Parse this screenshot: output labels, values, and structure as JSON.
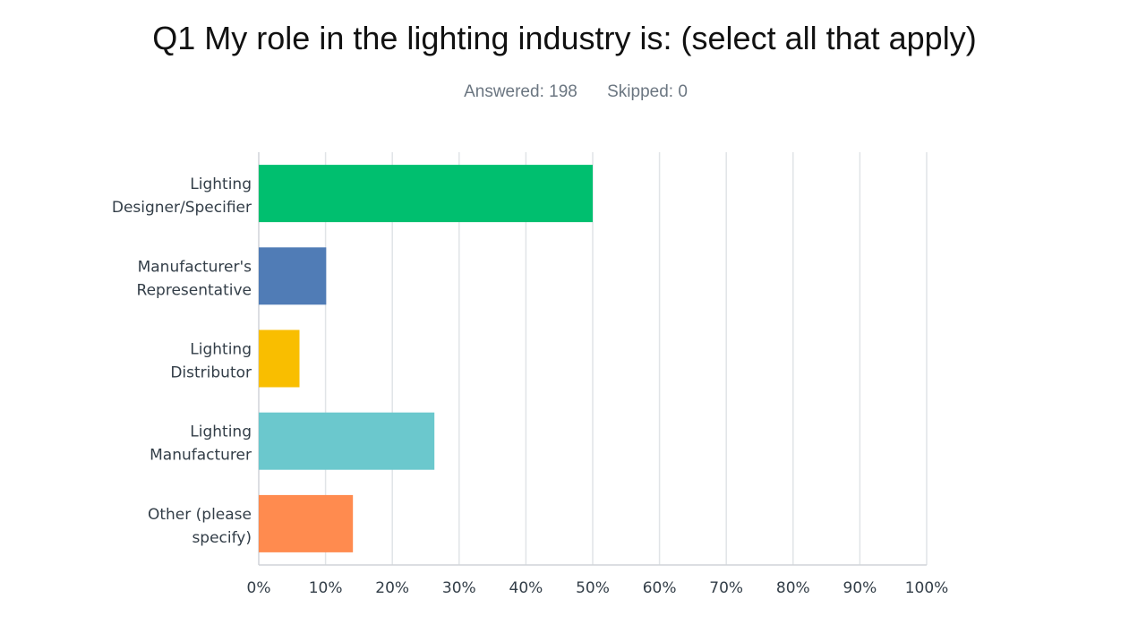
{
  "header": {
    "title": "Q1 My role in the lighting industry is: (select all that apply)",
    "answered": "Answered: 198",
    "skipped": "Skipped: 0"
  },
  "chart_data": {
    "type": "bar",
    "orientation": "horizontal",
    "title": "Q1 My role in the lighting industry is: (select all that apply)",
    "categories": [
      [
        "Lighting",
        "Designer/Specifier"
      ],
      [
        "Manufacturer's",
        "Representative"
      ],
      [
        "Lighting",
        "Distributor"
      ],
      [
        "Lighting",
        "Manufacturer"
      ],
      [
        "Other (please",
        "specify)"
      ]
    ],
    "values": [
      50.0,
      10.1,
      6.1,
      26.3,
      14.1
    ],
    "colors": [
      "#00bf6f",
      "#507cb6",
      "#f9be00",
      "#6bc8cd",
      "#ff8b4f"
    ],
    "xlim": [
      0,
      100
    ],
    "ticks": [
      "0%",
      "10%",
      "20%",
      "30%",
      "40%",
      "50%",
      "60%",
      "70%",
      "80%",
      "90%",
      "100%"
    ],
    "grid": true,
    "xlabel": "",
    "ylabel": ""
  }
}
